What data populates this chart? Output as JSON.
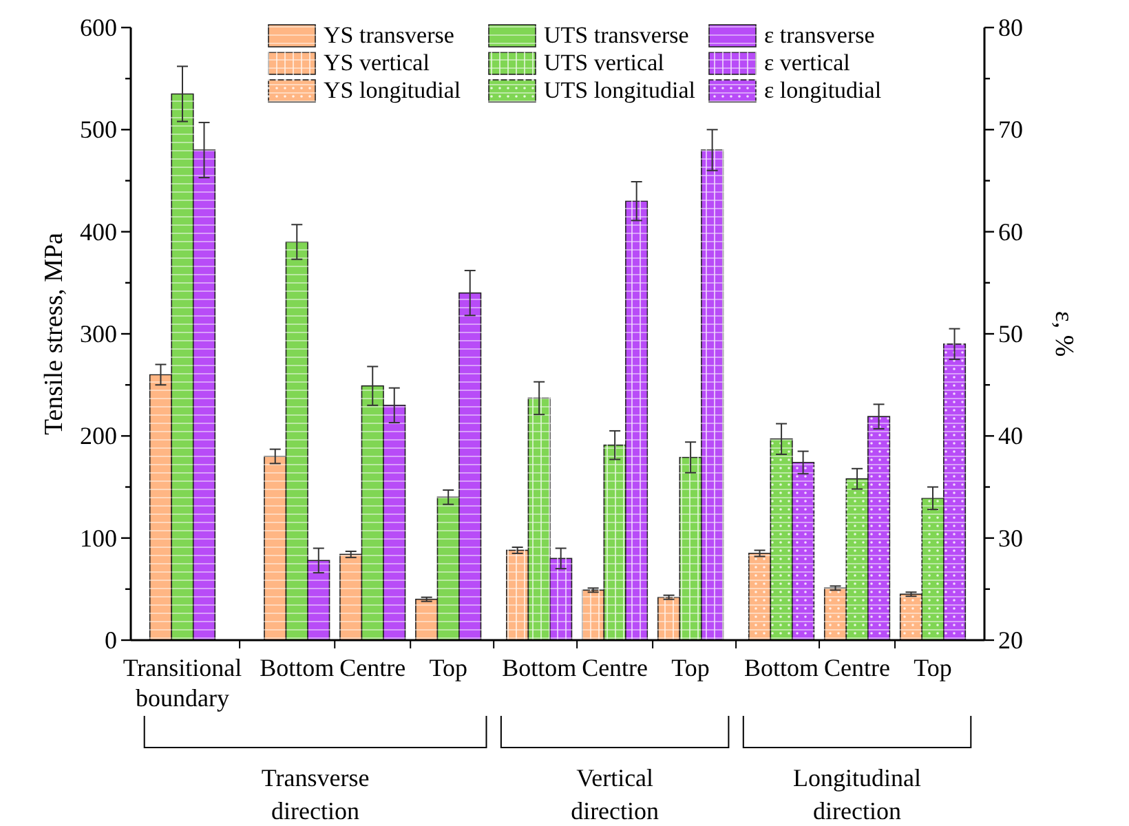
{
  "chart_data": {
    "type": "bar",
    "ylabel": "Tensile stress, MPa",
    "y2label": "ε, %",
    "categories": [
      "Transitional boundary",
      "Bottom",
      "Centre",
      "Top",
      "Bottom",
      "Centre",
      "Top",
      "Bottom",
      "Centre",
      "Top"
    ],
    "series": [
      {
        "name": "YS transverse",
        "color": "#ffb684",
        "values": [
          260,
          180,
          84,
          40,
          null,
          null,
          null,
          null,
          null,
          null
        ],
        "errors": [
          10,
          7,
          3,
          2,
          null,
          null,
          null,
          null,
          null,
          null
        ]
      },
      {
        "name": "YS vertical",
        "color": "#ffb684",
        "values": [
          null,
          null,
          null,
          null,
          88,
          49,
          42,
          null,
          null,
          null
        ],
        "errors": [
          null,
          null,
          null,
          null,
          3,
          2,
          2,
          null,
          null,
          null
        ]
      },
      {
        "name": "YS longitudial",
        "color": "#ffb684",
        "values": [
          null,
          null,
          null,
          null,
          null,
          null,
          null,
          85,
          51,
          45
        ],
        "errors": [
          null,
          null,
          null,
          null,
          null,
          null,
          null,
          3,
          2,
          2
        ]
      },
      {
        "name": "UTS transverse",
        "color": "#80d654",
        "values": [
          535,
          390,
          249,
          140,
          null,
          null,
          null,
          null,
          null,
          null
        ],
        "errors": [
          27,
          17,
          19,
          7,
          null,
          null,
          null,
          null,
          null,
          null
        ]
      },
      {
        "name": "UTS vertical",
        "color": "#80d654",
        "values": [
          null,
          null,
          null,
          null,
          237,
          191,
          179,
          null,
          null,
          null
        ],
        "errors": [
          null,
          null,
          null,
          null,
          16,
          14,
          15,
          null,
          null,
          null
        ]
      },
      {
        "name": "UTS longitudial",
        "color": "#80d654",
        "values": [
          null,
          null,
          null,
          null,
          null,
          null,
          null,
          197,
          158,
          139
        ],
        "errors": [
          null,
          null,
          null,
          null,
          null,
          null,
          null,
          15,
          10,
          11
        ]
      },
      {
        "name": "ε transverse",
        "color": "#b84cf7",
        "axis": "y2",
        "values": [
          68,
          27.8,
          43,
          54,
          null,
          null,
          null,
          null,
          null,
          null
        ],
        "errors": [
          2.7,
          1.2,
          1.7,
          2.2,
          null,
          null,
          null,
          null,
          null,
          null
        ]
      },
      {
        "name": "ε vertical",
        "color": "#b84cf7",
        "axis": "y2",
        "values": [
          null,
          null,
          null,
          null,
          28,
          63,
          68,
          null,
          null,
          null
        ],
        "errors": [
          null,
          null,
          null,
          null,
          1,
          1.9,
          2,
          null,
          null,
          null
        ]
      },
      {
        "name": "ε longitudial",
        "color": "#b84cf7",
        "axis": "y2",
        "values": [
          null,
          null,
          null,
          null,
          null,
          null,
          null,
          37.4,
          41.9,
          49
        ],
        "errors": [
          null,
          null,
          null,
          null,
          null,
          null,
          null,
          1.1,
          1.2,
          1.5
        ]
      }
    ],
    "ylim": [
      0,
      600
    ],
    "yticks": [
      0,
      {
        "value": 50,
        "label": null
      },
      100,
      {
        "value": 150,
        "label": null
      },
      200,
      {
        "value": 250,
        "label": null
      },
      300,
      {
        "value": 350,
        "label": null
      },
      400,
      {
        "value": 450,
        "label": null
      },
      500,
      {
        "value": 550,
        "label": null
      },
      600
    ],
    "y2lim": [
      20,
      80
    ],
    "y2ticks": [
      20,
      {
        "value": 25,
        "label": null
      },
      30,
      {
        "value": 35,
        "label": null
      },
      40,
      {
        "value": 45,
        "label": null
      },
      50,
      {
        "value": 55,
        "label": null
      },
      60,
      {
        "value": 65,
        "label": null
      },
      70,
      {
        "value": 75,
        "label": null
      },
      80
    ],
    "legend": "top",
    "annotations": [
      "Transverse direction",
      "Vertical direction",
      "Longitudinal direction"
    ]
  }
}
